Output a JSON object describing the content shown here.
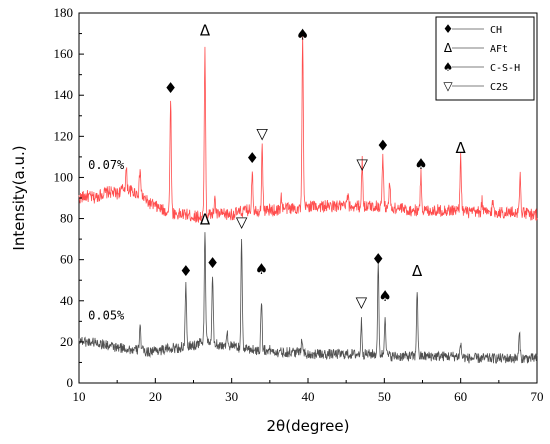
{
  "chart_data": {
    "type": "line",
    "title": "",
    "xlabel": "2θ(degree)",
    "ylabel": "Intensity(a.u.)",
    "xlim": [
      10,
      70
    ],
    "ylim": [
      0,
      180
    ],
    "x_ticks": [
      "10",
      "20",
      "30",
      "40",
      "50",
      "60",
      "70"
    ],
    "y_ticks": [
      "0",
      "20",
      "40",
      "60",
      "80",
      "100",
      "120",
      "140",
      "160",
      "180"
    ],
    "grid": false,
    "legend": {
      "placement": "top-right",
      "entries": [
        {
          "symbol": "♦",
          "label": "CH"
        },
        {
          "symbol": "Δ",
          "label": "AFt"
        },
        {
          "symbol": "♠",
          "label": "C-S-H"
        },
        {
          "symbol": "▽",
          "label": "C2S"
        }
      ]
    },
    "series": [
      {
        "name": "0.07%",
        "color": "#ff4d4d",
        "baseline": [
          [
            10,
            90
          ],
          [
            11,
            91
          ],
          [
            12,
            90
          ],
          [
            13,
            92
          ],
          [
            14,
            93
          ],
          [
            15,
            92
          ],
          [
            16,
            95
          ],
          [
            17,
            93
          ],
          [
            18,
            92
          ],
          [
            19,
            88
          ],
          [
            20,
            86
          ],
          [
            21,
            84
          ],
          [
            22,
            83
          ],
          [
            23,
            82
          ],
          [
            24,
            82
          ],
          [
            25,
            81
          ],
          [
            26,
            81
          ],
          [
            27,
            82
          ],
          [
            28,
            82
          ],
          [
            29,
            82
          ],
          [
            30,
            82
          ],
          [
            31,
            83
          ],
          [
            32,
            84
          ],
          [
            33,
            84
          ],
          [
            34,
            84
          ],
          [
            35,
            84
          ],
          [
            36,
            84
          ],
          [
            37,
            85
          ],
          [
            38,
            85
          ],
          [
            39,
            85
          ],
          [
            40,
            86
          ],
          [
            41,
            86
          ],
          [
            42,
            86
          ],
          [
            43,
            86
          ],
          [
            44,
            86
          ],
          [
            45,
            86
          ],
          [
            46,
            86
          ],
          [
            47,
            86
          ],
          [
            48,
            86
          ],
          [
            49,
            86
          ],
          [
            50,
            86
          ],
          [
            51,
            85
          ],
          [
            52,
            85
          ],
          [
            53,
            84
          ],
          [
            54,
            84
          ],
          [
            55,
            84
          ],
          [
            56,
            84
          ],
          [
            57,
            84
          ],
          [
            58,
            84
          ],
          [
            59,
            84
          ],
          [
            60,
            84
          ],
          [
            61,
            83
          ],
          [
            62,
            83
          ],
          [
            63,
            83
          ],
          [
            64,
            83
          ],
          [
            65,
            83
          ],
          [
            66,
            83
          ],
          [
            67,
            83
          ],
          [
            68,
            83
          ],
          [
            69,
            82
          ],
          [
            70,
            82
          ]
        ],
        "peaks": [
          [
            16.2,
            9
          ],
          [
            18.0,
            12
          ],
          [
            22.0,
            56
          ],
          [
            26.5,
            80
          ],
          [
            27.8,
            8
          ],
          [
            32.7,
            20
          ],
          [
            34.0,
            30
          ],
          [
            36.5,
            6
          ],
          [
            39.3,
            82
          ],
          [
            45.2,
            5
          ],
          [
            47.1,
            22
          ],
          [
            49.8,
            25
          ],
          [
            50.7,
            12
          ],
          [
            54.8,
            18
          ],
          [
            60.0,
            27
          ],
          [
            62.8,
            6
          ],
          [
            64.2,
            5
          ],
          [
            67.8,
            18
          ]
        ],
        "noise": 3
      },
      {
        "name": "0.05%",
        "color": "#505050",
        "baseline": [
          [
            10,
            21
          ],
          [
            11,
            20
          ],
          [
            12,
            20
          ],
          [
            13,
            19
          ],
          [
            14,
            18
          ],
          [
            15,
            17
          ],
          [
            16,
            17
          ],
          [
            17,
            16
          ],
          [
            18,
            16
          ],
          [
            19,
            15
          ],
          [
            20,
            16
          ],
          [
            21,
            16
          ],
          [
            22,
            17
          ],
          [
            23,
            17
          ],
          [
            24,
            18
          ],
          [
            25,
            18
          ],
          [
            26,
            20
          ],
          [
            27,
            20
          ],
          [
            28,
            19
          ],
          [
            29,
            18
          ],
          [
            30,
            18
          ],
          [
            31,
            17
          ],
          [
            32,
            17
          ],
          [
            33,
            16
          ],
          [
            34,
            16
          ],
          [
            35,
            16
          ],
          [
            36,
            15
          ],
          [
            37,
            15
          ],
          [
            38,
            15
          ],
          [
            39,
            15
          ],
          [
            40,
            14
          ],
          [
            41,
            14
          ],
          [
            42,
            14
          ],
          [
            43,
            14
          ],
          [
            44,
            14
          ],
          [
            45,
            14
          ],
          [
            46,
            14
          ],
          [
            47,
            14
          ],
          [
            48,
            14
          ],
          [
            49,
            14
          ],
          [
            50,
            14
          ],
          [
            51,
            13
          ],
          [
            52,
            13
          ],
          [
            53,
            13
          ],
          [
            54,
            13
          ],
          [
            55,
            13
          ],
          [
            56,
            13
          ],
          [
            57,
            13
          ],
          [
            58,
            13
          ],
          [
            59,
            13
          ],
          [
            60,
            13
          ],
          [
            61,
            12
          ],
          [
            62,
            12
          ],
          [
            63,
            12
          ],
          [
            64,
            12
          ],
          [
            65,
            12
          ],
          [
            66,
            12
          ],
          [
            67,
            12
          ],
          [
            68,
            12
          ],
          [
            69,
            12
          ],
          [
            70,
            12
          ]
        ],
        "peaks": [
          [
            18.0,
            13
          ],
          [
            24.0,
            29
          ],
          [
            26.5,
            54
          ],
          [
            27.5,
            32
          ],
          [
            29.4,
            8
          ],
          [
            31.3,
            52
          ],
          [
            33.9,
            25
          ],
          [
            39.2,
            8
          ],
          [
            47.0,
            16
          ],
          [
            49.2,
            43
          ],
          [
            50.1,
            20
          ],
          [
            54.3,
            33
          ],
          [
            60.0,
            6
          ],
          [
            67.7,
            12
          ]
        ],
        "noise": 2.5
      }
    ],
    "series_labels": [
      {
        "text": "0.07%",
        "x": 11.2,
        "y": 104
      },
      {
        "text": "0.05%",
        "x": 11.2,
        "y": 31
      }
    ],
    "annotations": [
      {
        "symbol": "♦",
        "x": 22.0,
        "y": 141
      },
      {
        "symbol": "Δ",
        "x": 26.5,
        "y": 169
      },
      {
        "symbol": "♦",
        "x": 32.7,
        "y": 107
      },
      {
        "symbol": "▽",
        "x": 34.0,
        "y": 119
      },
      {
        "symbol": "♠",
        "x": 39.3,
        "y": 167
      },
      {
        "symbol": "▽",
        "x": 47.1,
        "y": 104
      },
      {
        "symbol": "♦",
        "x": 49.8,
        "y": 113
      },
      {
        "symbol": "♠",
        "x": 54.8,
        "y": 104
      },
      {
        "symbol": "Δ",
        "x": 60.0,
        "y": 112
      },
      {
        "symbol": "♦",
        "x": 24.0,
        "y": 52
      },
      {
        "symbol": "Δ",
        "x": 26.5,
        "y": 77
      },
      {
        "symbol": "♦",
        "x": 27.5,
        "y": 56
      },
      {
        "symbol": "▽",
        "x": 31.3,
        "y": 76
      },
      {
        "symbol": "♠",
        "x": 33.9,
        "y": 53
      },
      {
        "symbol": "▽",
        "x": 47.0,
        "y": 37
      },
      {
        "symbol": "♦",
        "x": 49.2,
        "y": 58
      },
      {
        "symbol": "♠",
        "x": 50.1,
        "y": 40
      },
      {
        "symbol": "Δ",
        "x": 54.3,
        "y": 52
      }
    ]
  }
}
